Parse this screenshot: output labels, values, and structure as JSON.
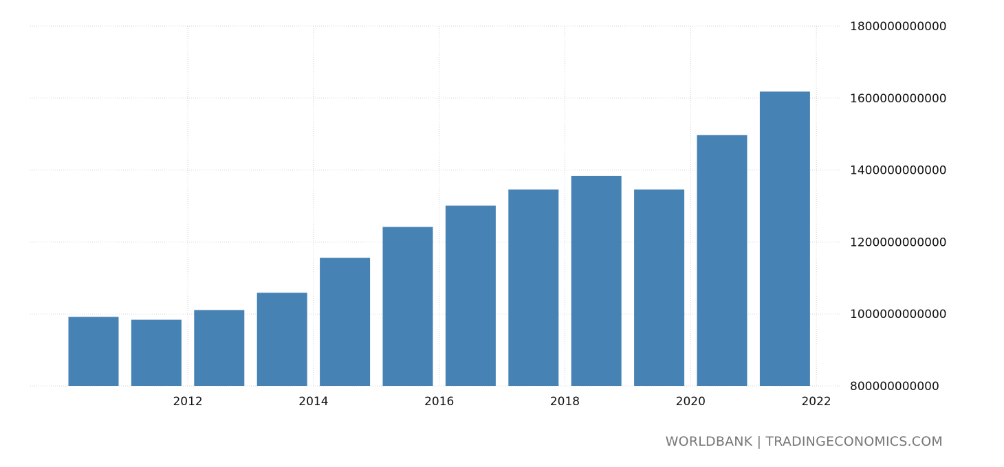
{
  "chart_data": {
    "type": "bar",
    "title": "",
    "xlabel": "",
    "ylabel": "",
    "categories": [
      "2011",
      "2012",
      "2013",
      "2014",
      "2015",
      "2016",
      "2017",
      "2018",
      "2019",
      "2020",
      "2021",
      "2022"
    ],
    "values": [
      992000000000,
      984000000000,
      1011000000000,
      1059000000000,
      1156000000000,
      1242000000000,
      1301000000000,
      1346000000000,
      1384000000000,
      1346000000000,
      1497000000000,
      1618000000000
    ],
    "ylim": [
      800000000000,
      1800000000000
    ],
    "yticks": [
      800000000000,
      1000000000000,
      1200000000000,
      1400000000000,
      1600000000000,
      1800000000000
    ],
    "ytick_labels": [
      "800000000000",
      "1000000000000",
      "1200000000000",
      "1400000000000",
      "1600000000000",
      "1800000000000"
    ],
    "xtick_labels": [
      {
        "category": "2012",
        "label": "2012"
      },
      {
        "category": "2014",
        "label": "2014"
      },
      {
        "category": "2016",
        "label": "2016"
      },
      {
        "category": "2018",
        "label": "2018"
      },
      {
        "category": "2020",
        "label": "2020"
      },
      {
        "category": "2022",
        "label": "2022"
      }
    ],
    "grid": true,
    "y_axis_side": "right",
    "bar_color": "#4682b4",
    "grid_color": "#d0d0d0"
  },
  "source": "WORLDBANK | TRADINGECONOMICS.COM"
}
